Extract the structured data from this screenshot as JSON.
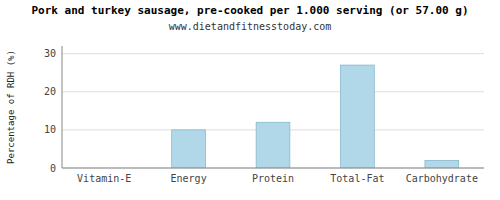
{
  "chart_data": {
    "type": "bar",
    "title": "Pork and turkey sausage, pre-cooked per 1.000 serving (or 57.00 g)",
    "subtitle": "www.dietandfitnesstoday.com",
    "categories": [
      "Vitamin-E",
      "Energy",
      "Protein",
      "Total-Fat",
      "Carbohydrate"
    ],
    "values": [
      0,
      10,
      12,
      27,
      2
    ],
    "color": "#b0d8e8",
    "ylabel": "Percentage of RDH (%)",
    "ylim": [
      0,
      32
    ],
    "yticks": [
      0,
      10,
      20,
      30
    ],
    "grid": true
  }
}
